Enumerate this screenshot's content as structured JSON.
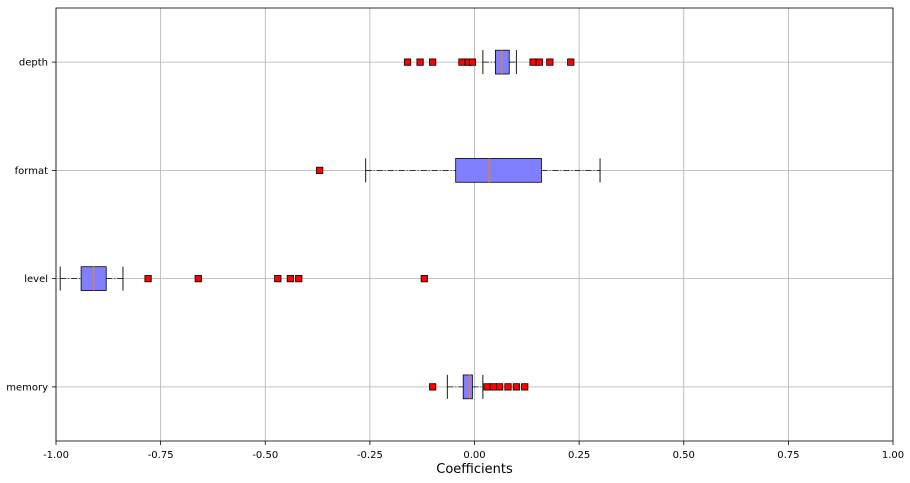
{
  "chart_data": {
    "type": "boxplot",
    "orientation": "horizontal",
    "xlabel": "Coefficients",
    "ylabel": "",
    "title": "",
    "xlim": [
      -1.0,
      1.0
    ],
    "xticks": [
      "-1.00",
      "-0.75",
      "-0.50",
      "-0.25",
      "0.00",
      "0.25",
      "0.50",
      "0.75",
      "1.00"
    ],
    "xtick_values": [
      -1.0,
      -0.75,
      -0.5,
      -0.25,
      0.0,
      0.25,
      0.5,
      0.75,
      1.0
    ],
    "grid": true,
    "colors": {
      "box_fill": "#7f7fff",
      "median": "#ff7f0e",
      "flier": "#ff0000",
      "grid": "#b0b0b0"
    },
    "series": [
      {
        "category": "depth",
        "whisker_low": 0.02,
        "q1": 0.05,
        "median": 0.065,
        "q3": 0.083,
        "whisker_high": 0.1,
        "outliers": [
          -0.16,
          -0.13,
          -0.1,
          -0.03,
          -0.015,
          -0.005,
          0.14,
          0.155,
          0.18,
          0.23
        ]
      },
      {
        "category": "format",
        "whisker_low": -0.26,
        "q1": -0.045,
        "median": 0.035,
        "q3": 0.16,
        "whisker_high": 0.3,
        "outliers": [
          -0.37
        ]
      },
      {
        "category": "level",
        "whisker_low": -0.99,
        "q1": -0.94,
        "median": -0.91,
        "q3": -0.88,
        "whisker_high": -0.84,
        "outliers": [
          -0.78,
          -0.66,
          -0.47,
          -0.44,
          -0.42,
          -0.12
        ]
      },
      {
        "category": "memory",
        "whisker_low": -0.065,
        "q1": -0.027,
        "median": -0.012,
        "q3": -0.005,
        "whisker_high": 0.02,
        "outliers": [
          -0.1,
          0.03,
          0.045,
          0.06,
          0.08,
          0.1,
          0.12
        ]
      }
    ]
  }
}
